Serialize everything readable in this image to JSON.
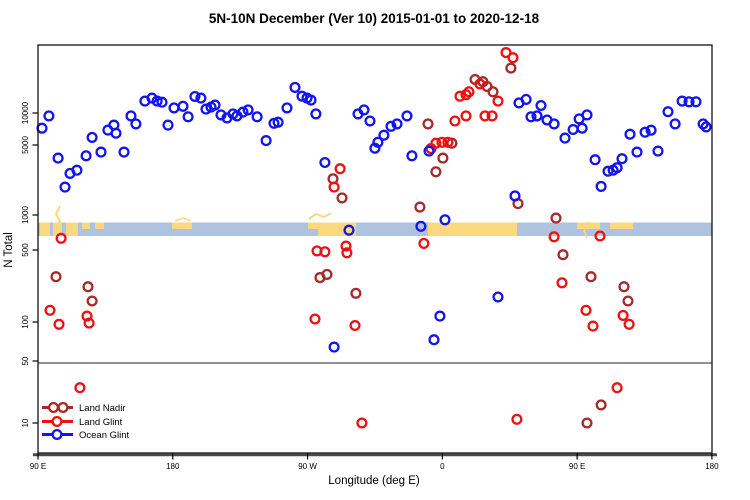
{
  "chart_data": {
    "type": "scatter",
    "title": "5N-10N December (Ver 10)   2015-01-01 to 2020-12-18",
    "xlabel": "Longitude (deg E)",
    "ylabel": "N Total",
    "y_scale": "log",
    "x_axis_range_deg": [
      90,
      540
    ],
    "x_ticks": [
      {
        "label": "90 E",
        "lon": 90
      },
      {
        "label": "180",
        "lon": 180
      },
      {
        "label": "90 W",
        "lon": 270
      },
      {
        "label": "0",
        "lon": 360
      },
      {
        "label": "90 E",
        "lon": 450
      },
      {
        "label": "180",
        "lon": 540
      }
    ],
    "y_ticks": [
      {
        "label": "10000",
        "value": 10000
      },
      {
        "label": "5000",
        "value": 5000
      },
      {
        "label": "1000",
        "value": 1000
      },
      {
        "label": "500",
        "value": 500
      },
      {
        "label": "100",
        "value": 100
      },
      {
        "label": "50",
        "value": 50
      },
      {
        "label": "10",
        "value": 10
      }
    ],
    "threshold_line_value": 50,
    "colors": {
      "land_nadir": "#A52A2A",
      "land_glint": "#EE1111",
      "ocean_glint": "#1414EE",
      "band_ocean": "#AEC3DF",
      "band_land": "#F9D87E",
      "threshold_line": "#909090"
    },
    "land_ocean_band": {
      "description": "map strip of 5N-10N latitude band",
      "land_segments": [
        {
          "lon_start": 91.3,
          "lon_end": 98.0,
          "coverage": "full"
        },
        {
          "lon_start": 100.0,
          "lon_end": 106.0,
          "coverage": "full"
        },
        {
          "lon_start": 108.7,
          "lon_end": 116.7,
          "coverage": "full"
        },
        {
          "lon_start": 119.4,
          "lon_end": 124.7,
          "coverage": "top"
        },
        {
          "lon_start": 128.1,
          "lon_end": 134.1,
          "coverage": "top"
        },
        {
          "lon_start": 179.5,
          "lon_end": 192.8,
          "coverage": "top"
        },
        {
          "lon_start": 270.3,
          "lon_end": 277.0,
          "coverage": "top"
        },
        {
          "lon_start": 277.0,
          "lon_end": 302.4,
          "coverage": "full"
        },
        {
          "lon_start": 350.4,
          "lon_end": 409.9,
          "coverage": "full"
        },
        {
          "lon_start": 449.9,
          "lon_end": 465.3,
          "coverage": "top"
        },
        {
          "lon_start": 472.0,
          "lon_end": 487.4,
          "coverage": "top"
        }
      ]
    },
    "series": [
      {
        "name": "Land Nadir",
        "color_key": "land_nadir",
        "points": [
          [
            102.0,
            275
          ],
          [
            123.4,
            220
          ],
          [
            126.1,
            160
          ],
          [
            287.0,
            2300
          ],
          [
            293.0,
            1480
          ],
          [
            278.3,
            270
          ],
          [
            283.0,
            290
          ],
          [
            302.3,
            190
          ],
          [
            405.8,
            27000
          ],
          [
            381.8,
            21000
          ],
          [
            387.1,
            20000
          ],
          [
            389.8,
            18000
          ],
          [
            393.8,
            16000
          ],
          [
            350.4,
            7900
          ],
          [
            366.4,
            5200
          ],
          [
            360.4,
            3700
          ],
          [
            355.7,
            2700
          ],
          [
            345.0,
            1200
          ],
          [
            410.5,
            1300
          ],
          [
            435.9,
            940
          ],
          [
            440.6,
            450
          ],
          [
            459.3,
            275
          ],
          [
            481.3,
            220
          ],
          [
            484.0,
            160
          ],
          [
            466.0,
            16
          ],
          [
            456.6,
            10
          ]
        ]
      },
      {
        "name": "Land Glint",
        "color_key": "land_glint",
        "points": [
          [
            105.4,
            630
          ],
          [
            98.0,
            130
          ],
          [
            104.0,
            96
          ],
          [
            122.7,
            114
          ],
          [
            124.1,
            98
          ],
          [
            118.0,
            25
          ],
          [
            291.7,
            2900
          ],
          [
            287.7,
            1900
          ],
          [
            276.3,
            490
          ],
          [
            281.6,
            480
          ],
          [
            295.7,
            540
          ],
          [
            296.3,
            470
          ],
          [
            275.0,
            107
          ],
          [
            301.7,
            94
          ],
          [
            306.3,
            10
          ],
          [
            402.5,
            38000
          ],
          [
            407.2,
            34000
          ],
          [
            385.1,
            19000
          ],
          [
            377.8,
            16000
          ],
          [
            375.8,
            15000
          ],
          [
            371.8,
            14500
          ],
          [
            397.2,
            13000
          ],
          [
            368.4,
            8400
          ],
          [
            375.8,
            9400
          ],
          [
            388.5,
            9400
          ],
          [
            393.2,
            9400
          ],
          [
            352.4,
            4600
          ],
          [
            355.7,
            5200
          ],
          [
            359.7,
            5300
          ],
          [
            363.7,
            5300
          ],
          [
            347.7,
            570
          ],
          [
            409.8,
            11
          ],
          [
            434.6,
            650
          ],
          [
            439.9,
            240
          ],
          [
            455.9,
            130
          ],
          [
            460.6,
            93
          ],
          [
            465.3,
            660
          ],
          [
            480.7,
            116
          ],
          [
            484.7,
            96
          ],
          [
            476.7,
            25
          ]
        ]
      },
      {
        "name": "Ocean Glint",
        "color_key": "ocean_glint",
        "points": [
          [
            92.7,
            7200
          ],
          [
            97.3,
            9400
          ],
          [
            103.4,
            3700
          ],
          [
            108.0,
            1900
          ],
          [
            111.4,
            2600
          ],
          [
            116.0,
            2800
          ],
          [
            122.1,
            3900
          ],
          [
            126.1,
            5900
          ],
          [
            132.1,
            4250
          ],
          [
            136.7,
            6900
          ],
          [
            140.7,
            7700
          ],
          [
            142.1,
            6450
          ],
          [
            147.4,
            4250
          ],
          [
            152.1,
            9400
          ],
          [
            155.4,
            7900
          ],
          [
            161.4,
            13000
          ],
          [
            166.1,
            13900
          ],
          [
            169.5,
            13000
          ],
          [
            172.8,
            12700
          ],
          [
            176.8,
            7700
          ],
          [
            180.8,
            11200
          ],
          [
            186.8,
            11600
          ],
          [
            190.2,
            9200
          ],
          [
            194.8,
            14400
          ],
          [
            198.8,
            13900
          ],
          [
            202.2,
            10900
          ],
          [
            205.5,
            11400
          ],
          [
            208.2,
            11900
          ],
          [
            212.2,
            9600
          ],
          [
            216.2,
            9000
          ],
          [
            220.2,
            9800
          ],
          [
            222.9,
            9400
          ],
          [
            226.9,
            10200
          ],
          [
            230.3,
            10700
          ],
          [
            236.3,
            9200
          ],
          [
            242.3,
            5500
          ],
          [
            247.6,
            8000
          ],
          [
            250.3,
            8200
          ],
          [
            256.3,
            11200
          ],
          [
            261.6,
            17600
          ],
          [
            266.3,
            14500
          ],
          [
            269.6,
            13900
          ],
          [
            272.3,
            13300
          ],
          [
            275.6,
            9800
          ],
          [
            281.6,
            3340
          ],
          [
            297.7,
            740
          ],
          [
            287.7,
            64
          ],
          [
            303.7,
            9800
          ],
          [
            307.7,
            10700
          ],
          [
            311.7,
            8400
          ],
          [
            315.0,
            4640
          ],
          [
            317.0,
            5300
          ],
          [
            321.0,
            6180
          ],
          [
            325.7,
            7500
          ],
          [
            329.7,
            7900
          ],
          [
            336.4,
            9400
          ],
          [
            339.7,
            3900
          ],
          [
            351.1,
            4350
          ],
          [
            345.7,
            800
          ],
          [
            361.8,
            910
          ],
          [
            408.5,
            1550
          ],
          [
            397.2,
            175
          ],
          [
            358.4,
            114
          ],
          [
            354.4,
            73
          ],
          [
            411.2,
            12500
          ],
          [
            415.9,
            13500
          ],
          [
            419.2,
            9200
          ],
          [
            423.2,
            9400
          ],
          [
            425.9,
            11800
          ],
          [
            429.9,
            8600
          ],
          [
            434.6,
            7900
          ],
          [
            441.9,
            5800
          ],
          [
            447.3,
            7000
          ],
          [
            451.3,
            8800
          ],
          [
            453.3,
            7200
          ],
          [
            456.6,
            9600
          ],
          [
            462.0,
            3570
          ],
          [
            466.0,
            1930
          ],
          [
            470.6,
            2740
          ],
          [
            474.0,
            2800
          ],
          [
            476.7,
            2970
          ],
          [
            480.0,
            3650
          ],
          [
            485.3,
            6320
          ],
          [
            490.0,
            4250
          ],
          [
            495.4,
            6600
          ],
          [
            499.4,
            6890
          ],
          [
            504.0,
            4350
          ],
          [
            510.7,
            10300
          ],
          [
            515.4,
            7900
          ],
          [
            520.1,
            13000
          ],
          [
            524.7,
            12800
          ],
          [
            529.4,
            12800
          ],
          [
            534.1,
            7900
          ],
          [
            536.1,
            7400
          ]
        ]
      }
    ],
    "legend": {
      "position": "bottom-left",
      "entries": [
        "Land Nadir",
        "Land Glint",
        "Ocean Glint"
      ]
    }
  }
}
